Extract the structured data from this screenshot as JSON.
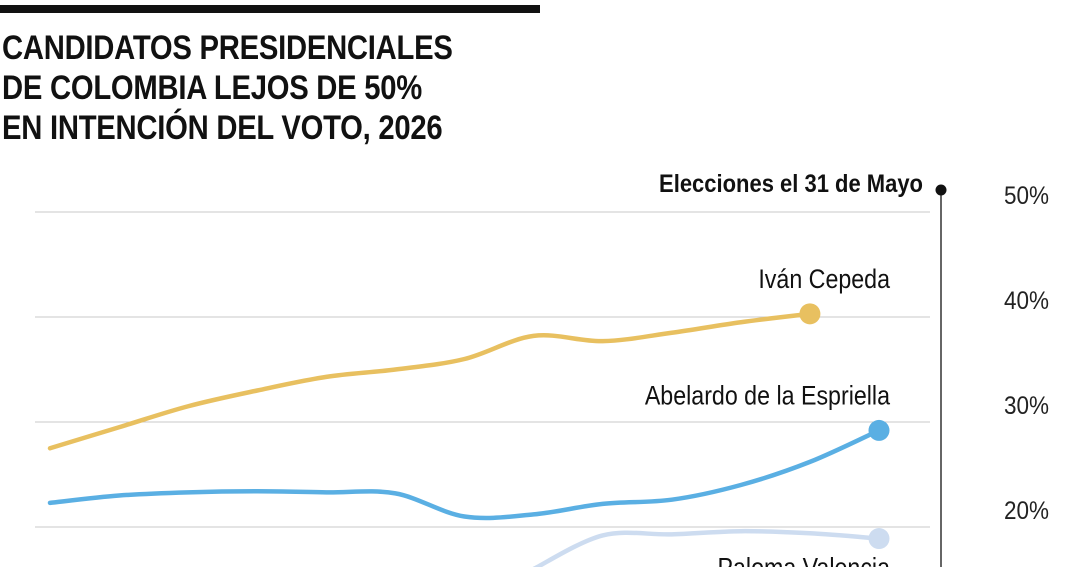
{
  "title_lines": [
    "CANDIDATOS PRESIDENCIALES",
    "DE COLOMBIA LEJOS DE 50%",
    "EN INTENCIÓN DEL VOTO, 2026"
  ],
  "chart_data": {
    "type": "line",
    "title": "CANDIDATOS PRESIDENCIALES DE COLOMBIA LEJOS DE 50% EN INTENCIÓN DEL VOTO, 2026",
    "xlabel": "",
    "ylabel": "",
    "y_ticks": [
      "50%",
      "40%",
      "30%",
      "20%"
    ],
    "ylim": [
      0,
      50
    ],
    "grid": true,
    "event": {
      "label": "Elecciones el 31 de Mayo"
    },
    "x": [
      1,
      2,
      3,
      4,
      5,
      6,
      7,
      8,
      9,
      10,
      11,
      12,
      13
    ],
    "series": [
      {
        "name": "Iván Cepeda",
        "color": "#e8c060",
        "values": [
          27.5,
          29.5,
          31.5,
          33,
          34.3,
          35,
          36,
          38.2,
          37.7,
          38.5,
          39.5,
          40.3,
          null
        ]
      },
      {
        "name": "Abelardo de la Espriella",
        "color": "#5aafe3",
        "values": [
          22.3,
          23,
          23.3,
          23.4,
          23.3,
          23.2,
          21,
          21.2,
          22.2,
          22.6,
          24,
          26.2,
          29.2
        ]
      },
      {
        "name": "Paloma Valencia",
        "color": "#cddcf0",
        "values": [
          null,
          null,
          null,
          null,
          null,
          null,
          null,
          16,
          19.2,
          19.3,
          19.6,
          19.4,
          18.9
        ]
      }
    ]
  }
}
